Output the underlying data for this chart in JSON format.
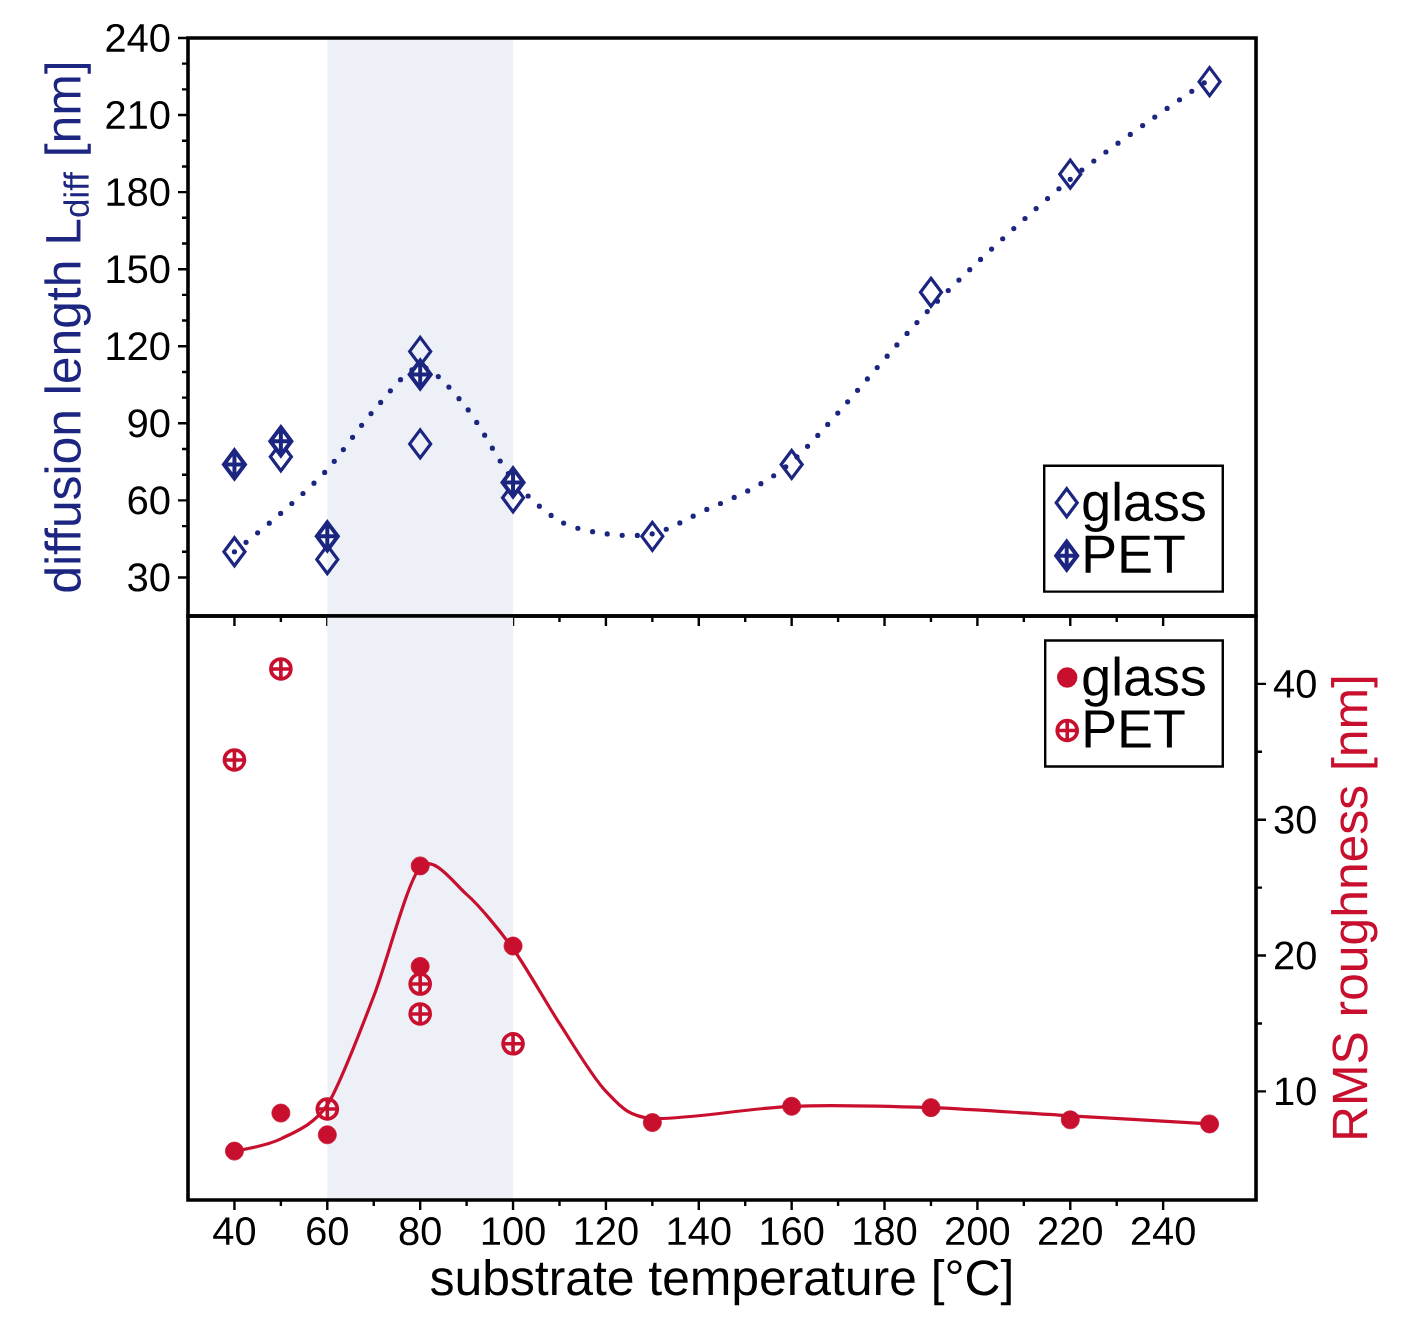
{
  "chart_data": [
    {
      "type": "scatter",
      "ylabel": "diffusion length L$_{diff}$ [nm]",
      "xlim": [
        30,
        260
      ],
      "xticks": [
        40,
        60,
        80,
        100,
        120,
        140,
        160,
        180,
        200,
        220,
        240
      ],
      "ylim": [
        15,
        240
      ],
      "yticks": [
        30,
        60,
        90,
        120,
        150,
        180,
        210,
        240
      ],
      "tick_labels": "y",
      "legend": "bottom right",
      "bands": [
        {
          "axis": "x",
          "from": 60,
          "to": 100,
          "color": "#edf1f7"
        }
      ],
      "series": [
        {
          "name": "glass",
          "color": "#1c2580",
          "marker": "diamond",
          "x": [
            40,
            50,
            60,
            80,
            80,
            100,
            130,
            160,
            190,
            220,
            250
          ],
          "values": [
            40,
            77,
            37,
            118,
            82,
            61,
            46,
            74,
            141,
            187,
            223
          ]
        },
        {
          "name": "PET",
          "color": "#1c2580",
          "marker": "cross",
          "x": [
            40,
            50,
            60,
            80,
            100
          ],
          "values": [
            74,
            83,
            46,
            109,
            67
          ]
        },
        {
          "type": "line",
          "color": "#1c2580",
          "marker": "none",
          "line_style": "dotted",
          "x": [
            40,
            50,
            60,
            70,
            80,
            90,
            100,
            110,
            120,
            130,
            140,
            160,
            190,
            220,
            250
          ],
          "values": [
            40,
            55,
            72,
            95,
            112,
            96,
            68,
            52,
            47,
            47,
            55,
            75,
            135,
            185,
            224
          ]
        }
      ]
    },
    {
      "type": "scatter",
      "xlabel": "substrate temperature [°C]",
      "y2label": "RMS roughness [nm]",
      "xlim": [
        30,
        260
      ],
      "xticks": [
        40,
        60,
        80,
        100,
        120,
        140,
        160,
        180,
        200,
        220,
        240
      ],
      "y2lim": [
        2,
        45
      ],
      "y2ticks": [
        10,
        20,
        30,
        40
      ],
      "legend": "top right",
      "bands": [
        {
          "axis": "x",
          "from": 60,
          "to": 100,
          "color": "#edf1f7"
        }
      ],
      "series": [
        {
          "name": "glass",
          "color": "#c8102e",
          "marker": "circle",
          "axis": "y2",
          "x": [
            40,
            50,
            60,
            80,
            80,
            100,
            130,
            160,
            190,
            220,
            250
          ],
          "values": [
            5.6,
            8.4,
            6.8,
            26.6,
            19.2,
            20.7,
            7.7,
            8.9,
            8.8,
            7.9,
            7.6
          ]
        },
        {
          "name": "PET",
          "color": "#c8102e",
          "marker": "cross",
          "axis": "y2",
          "x": [
            40,
            50,
            60,
            80,
            80,
            100
          ],
          "values": [
            34.4,
            41.1,
            8.7,
            17.9,
            15.7,
            13.5
          ]
        },
        {
          "type": "line",
          "color": "#c8102e",
          "marker": "none",
          "line_style": "solid",
          "axis": "y2",
          "x": [
            40,
            50,
            60,
            70,
            80,
            90,
            100,
            110,
            120,
            130,
            160,
            190,
            220,
            250
          ],
          "values": [
            5.6,
            6.5,
            9,
            17,
            26.5,
            24.5,
            20.5,
            15,
            10,
            8,
            8.9,
            8.8,
            8.2,
            7.6
          ]
        }
      ]
    }
  ]
}
